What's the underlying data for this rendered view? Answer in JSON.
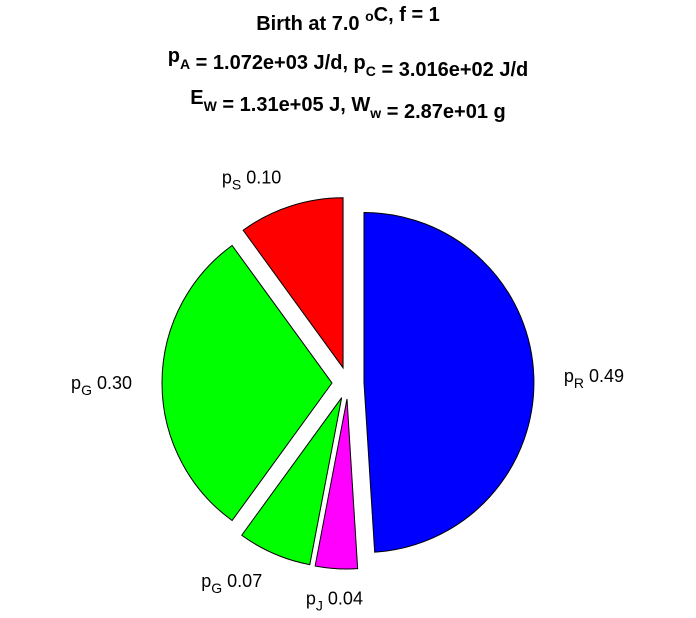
{
  "chart_data": {
    "type": "pie",
    "title_lines": [
      {
        "parts": [
          {
            "t": "Birth at 7.0 "
          },
          {
            "t": "o",
            "s": "sup"
          },
          {
            "t": "C, f = 1"
          }
        ]
      },
      {
        "parts": [
          {
            "t": "p"
          },
          {
            "t": "A",
            "s": "sub"
          },
          {
            "t": " = 1.072e+03 J/d, p"
          },
          {
            "t": "C",
            "s": "sub"
          },
          {
            "t": " = 3.016e+02 J/d"
          }
        ]
      },
      {
        "parts": [
          {
            "t": "E"
          },
          {
            "t": "W",
            "s": "sub"
          },
          {
            "t": " = 1.31e+05 J, W"
          },
          {
            "t": "w",
            "s": "sub"
          },
          {
            "t": " = 2.87e+01 g"
          }
        ]
      }
    ],
    "slices": [
      {
        "symbol": "p",
        "subscript": "R",
        "value_label": "0.49",
        "value": 0.49,
        "color": "#0000ff"
      },
      {
        "symbol": "p",
        "subscript": "J",
        "value_label": "0.04",
        "value": 0.04,
        "color": "#ff00ff"
      },
      {
        "symbol": "p",
        "subscript": "G",
        "value_label": "0.07",
        "value": 0.07,
        "color": "#00ff00"
      },
      {
        "symbol": "p",
        "subscript": "G",
        "value_label": "0.30",
        "value": 0.3,
        "color": "#00ff00"
      },
      {
        "symbol": "p",
        "subscript": "S",
        "value_label": "0.10",
        "value": 0.1,
        "color": "#ff0000"
      }
    ],
    "exploded": true,
    "start_angle_deg": 0,
    "direction": "clockwise"
  }
}
